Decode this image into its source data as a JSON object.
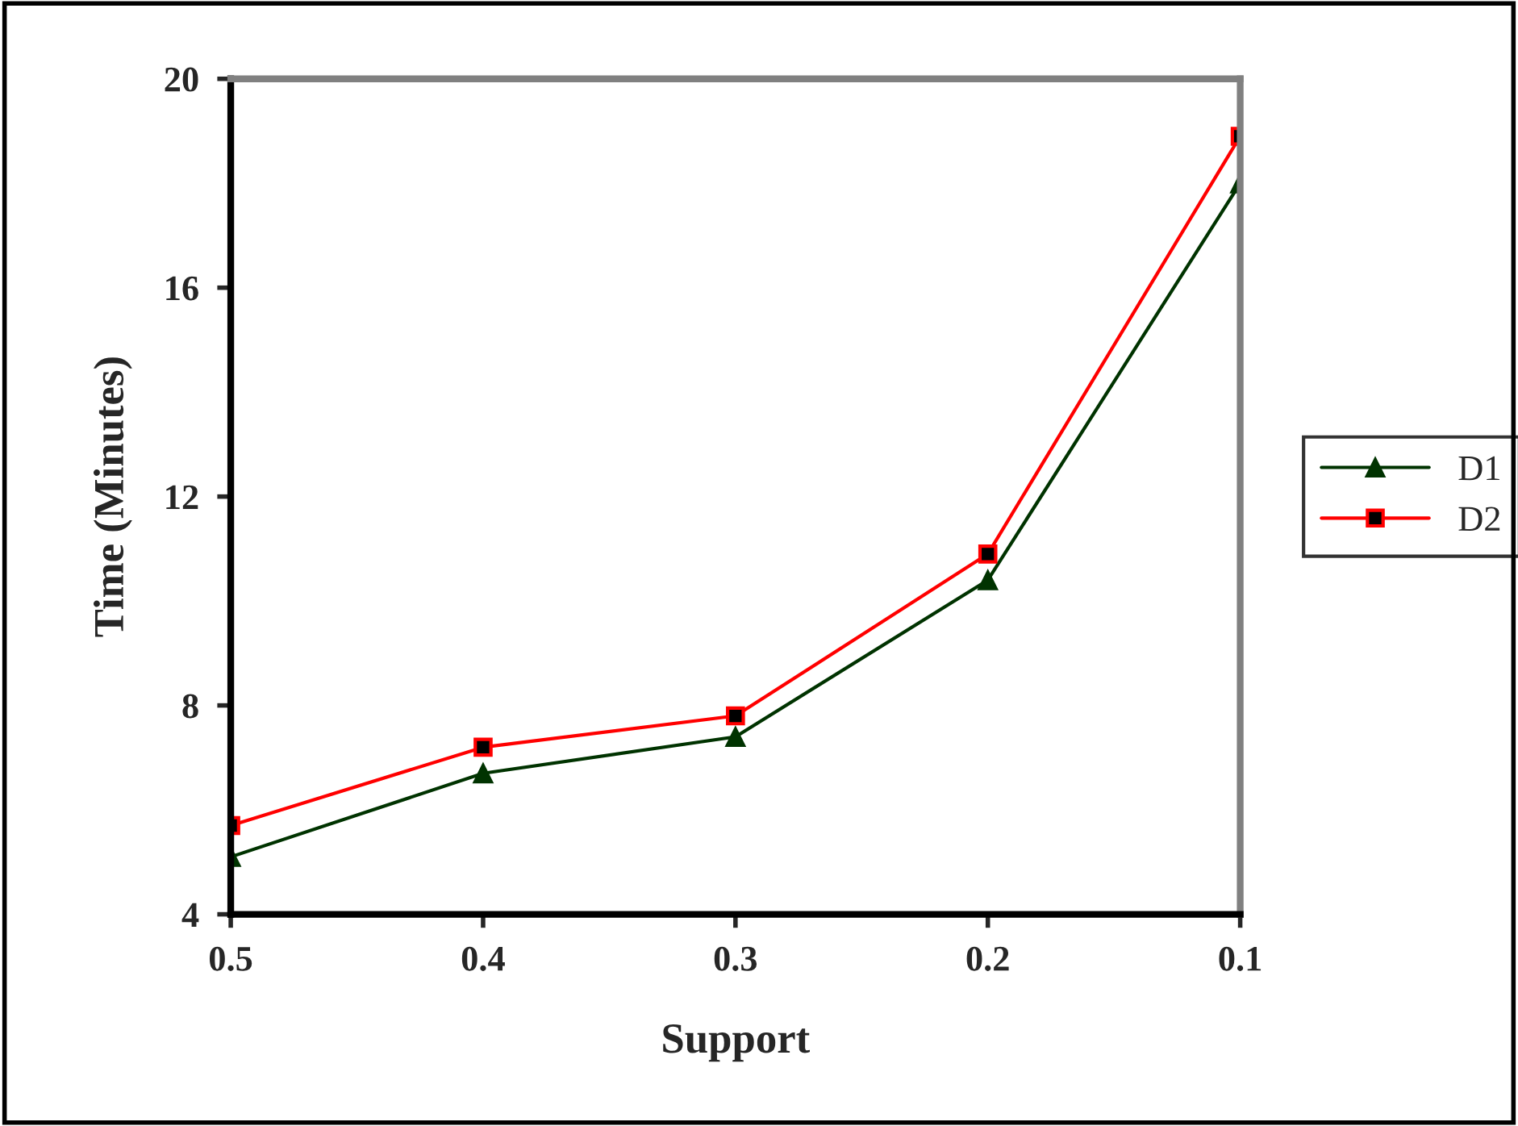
{
  "chart_data": {
    "type": "line",
    "xlabel": "Support",
    "ylabel": "Time (Minutes)",
    "categories": [
      "0.5",
      "0.4",
      "0.3",
      "0.2",
      "0.1"
    ],
    "series": [
      {
        "name": "D1",
        "color": "#003300",
        "marker": "triangle",
        "values": [
          5.1,
          6.7,
          7.4,
          10.4,
          18.0
        ]
      },
      {
        "name": "D2",
        "color": "#ff0000",
        "marker": "square",
        "values": [
          5.7,
          7.2,
          7.8,
          10.9,
          18.9
        ]
      }
    ],
    "ylim": [
      4,
      20
    ],
    "yticks": [
      4,
      8,
      12,
      16,
      20
    ],
    "grid": false,
    "legend": "right",
    "line_style": "solid"
  }
}
